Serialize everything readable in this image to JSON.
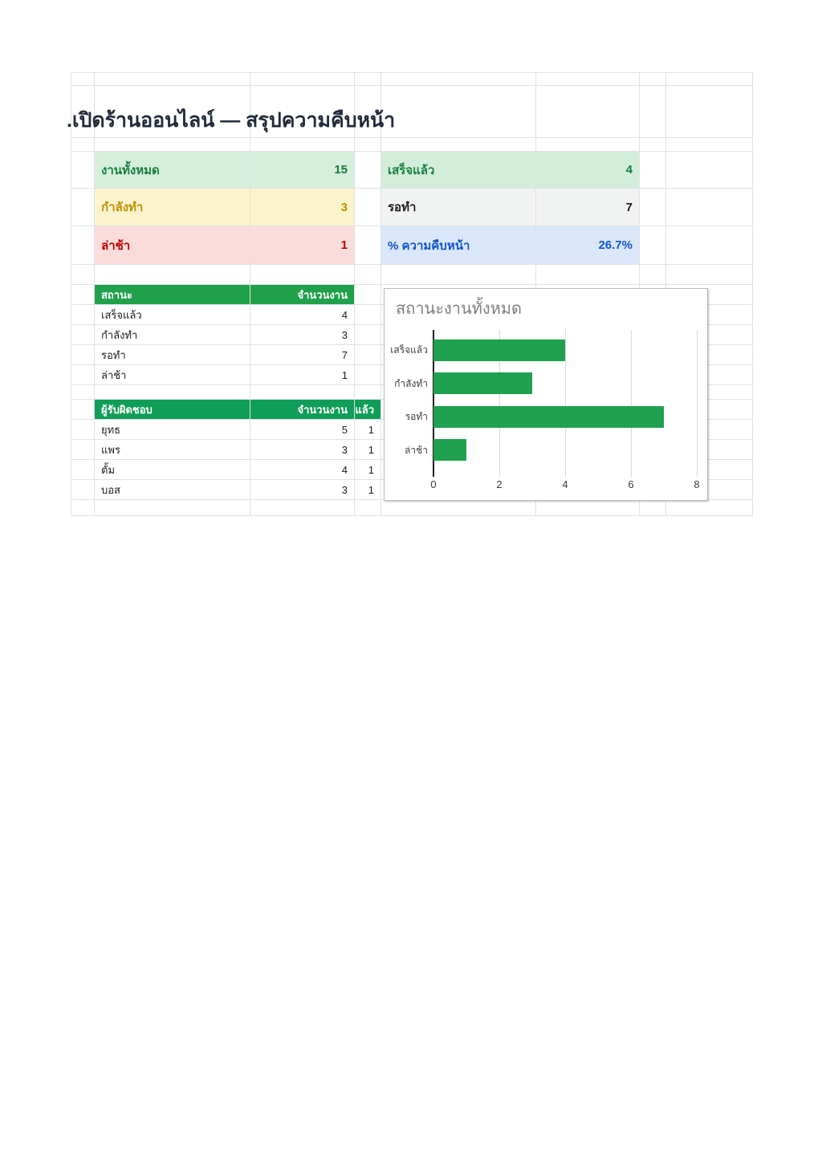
{
  "sheet": {
    "title": ".เปิดร้านออนไลน์ — สรุปความคืบหน้า",
    "cards": [
      {
        "label": "งานทั้งหมด",
        "value": "15",
        "bg": "#d5efdc",
        "fg": "#177d3e"
      },
      {
        "label": "เสร็จแล้ว",
        "value": "4",
        "bg": "#d2eeda",
        "fg": "#177d3e"
      },
      {
        "label": "กำลังทำ",
        "value": "3",
        "bg": "#fbf3cc",
        "fg": "#bf9000"
      },
      {
        "label": "รอทำ",
        "value": "7",
        "bg": "#f1f3f2",
        "fg": "#1c1c1c"
      },
      {
        "label": "ล่าช้า",
        "value": "1",
        "bg": "#fadcda",
        "fg": "#c00000"
      },
      {
        "label": "% ความคืบหน้า",
        "value": "26.7%",
        "bg": "#dae6f9",
        "fg": "#1155cc"
      }
    ],
    "status_table": {
      "header_bg": "#21a04b",
      "header": {
        "col1": "สถานะ",
        "col2": "จำนวนงาน"
      },
      "rows": [
        [
          "เสร็จแล้ว",
          "4"
        ],
        [
          "กำลังทำ",
          "3"
        ],
        [
          "รอทำ",
          "7"
        ],
        [
          "ล่าช้า",
          "1"
        ]
      ]
    },
    "owner_table": {
      "header_bg": "#0f9d58",
      "header": {
        "col1": "ผู้รับผิดชอบ",
        "col2": "จำนวนงาน",
        "col3": "งแล้ว"
      },
      "rows": [
        [
          "ยุทธ",
          "5",
          "1"
        ],
        [
          "แพร",
          "3",
          "1"
        ],
        [
          "ตั้ม",
          "4",
          "1"
        ],
        [
          "บอส",
          "3",
          "1"
        ]
      ]
    }
  },
  "chart_data": {
    "type": "bar",
    "orientation": "horizontal",
    "title": "สถานะงานทั้งหมด",
    "categories": [
      "เสร็จแล้ว",
      "กำลังทำ",
      "รอทำ",
      "ล่าช้า"
    ],
    "values": [
      4,
      3,
      7,
      1
    ],
    "xlim": [
      0,
      8
    ],
    "xticks": [
      0,
      2,
      4,
      6,
      8
    ],
    "bar_color": "#1fa14f",
    "grid": "vertical",
    "legend": "none"
  }
}
